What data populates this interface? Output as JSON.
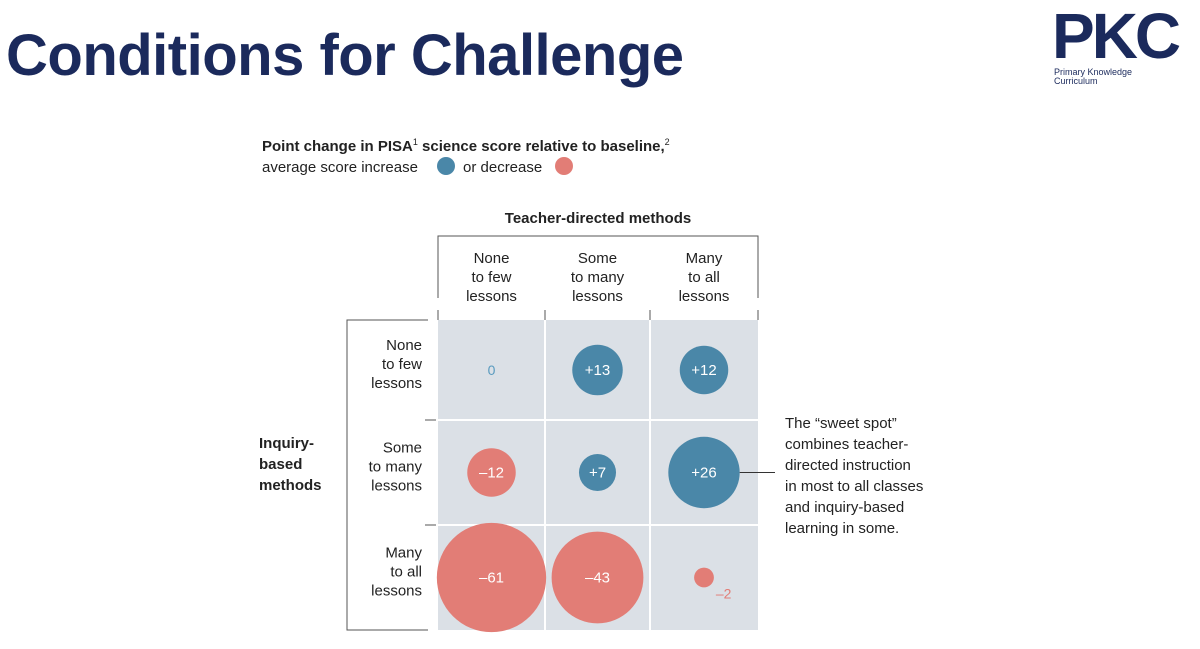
{
  "slide": {
    "title": "Conditions for Challenge"
  },
  "logo": {
    "mark": "PKC",
    "subtitle_line1": "Primary Knowledge",
    "subtitle_line2": "Curriculum"
  },
  "chart_data": {
    "type": "bubble-matrix",
    "title_main": "Point change in PISA",
    "title_sup1": "1",
    "title_rest": " science score relative to baseline,",
    "title_sup2": "2",
    "legend_increase": "average score increase",
    "legend_decrease": "or decrease",
    "column_axis_label": "Teacher-directed methods",
    "row_axis_label": [
      "Inquiry-",
      "based",
      "methods"
    ],
    "columns": [
      [
        "None",
        "to few",
        "lessons"
      ],
      [
        "Some",
        "to many",
        "lessons"
      ],
      [
        "Many",
        "to all",
        "lessons"
      ]
    ],
    "rows": [
      [
        "None",
        "to few",
        "lessons"
      ],
      [
        "Some",
        "to many",
        "lessons"
      ],
      [
        "Many",
        "to all",
        "lessons"
      ]
    ],
    "cells": [
      {
        "row": 0,
        "col": 0,
        "value": 0,
        "label": "0"
      },
      {
        "row": 0,
        "col": 1,
        "value": 13,
        "label": "+13"
      },
      {
        "row": 0,
        "col": 2,
        "value": 12,
        "label": "+12"
      },
      {
        "row": 1,
        "col": 0,
        "value": -12,
        "label": "–12"
      },
      {
        "row": 1,
        "col": 1,
        "value": 7,
        "label": "+7"
      },
      {
        "row": 1,
        "col": 2,
        "value": 26,
        "label": "+26"
      },
      {
        "row": 2,
        "col": 0,
        "value": -61,
        "label": "–61"
      },
      {
        "row": 2,
        "col": 1,
        "value": -43,
        "label": "–43"
      },
      {
        "row": 2,
        "col": 2,
        "value": -2,
        "label": "–2"
      }
    ],
    "annotation": [
      "The “sweet spot”",
      "combines teacher-",
      "directed instruction",
      "in most to all classes",
      "and inquiry-based",
      "learning in some."
    ],
    "colors": {
      "increase": "#4a87a8",
      "decrease": "#e27d76",
      "cell_bg": "#dbe0e6",
      "text": "#222222",
      "zero_label": "#5a9bbf"
    }
  }
}
